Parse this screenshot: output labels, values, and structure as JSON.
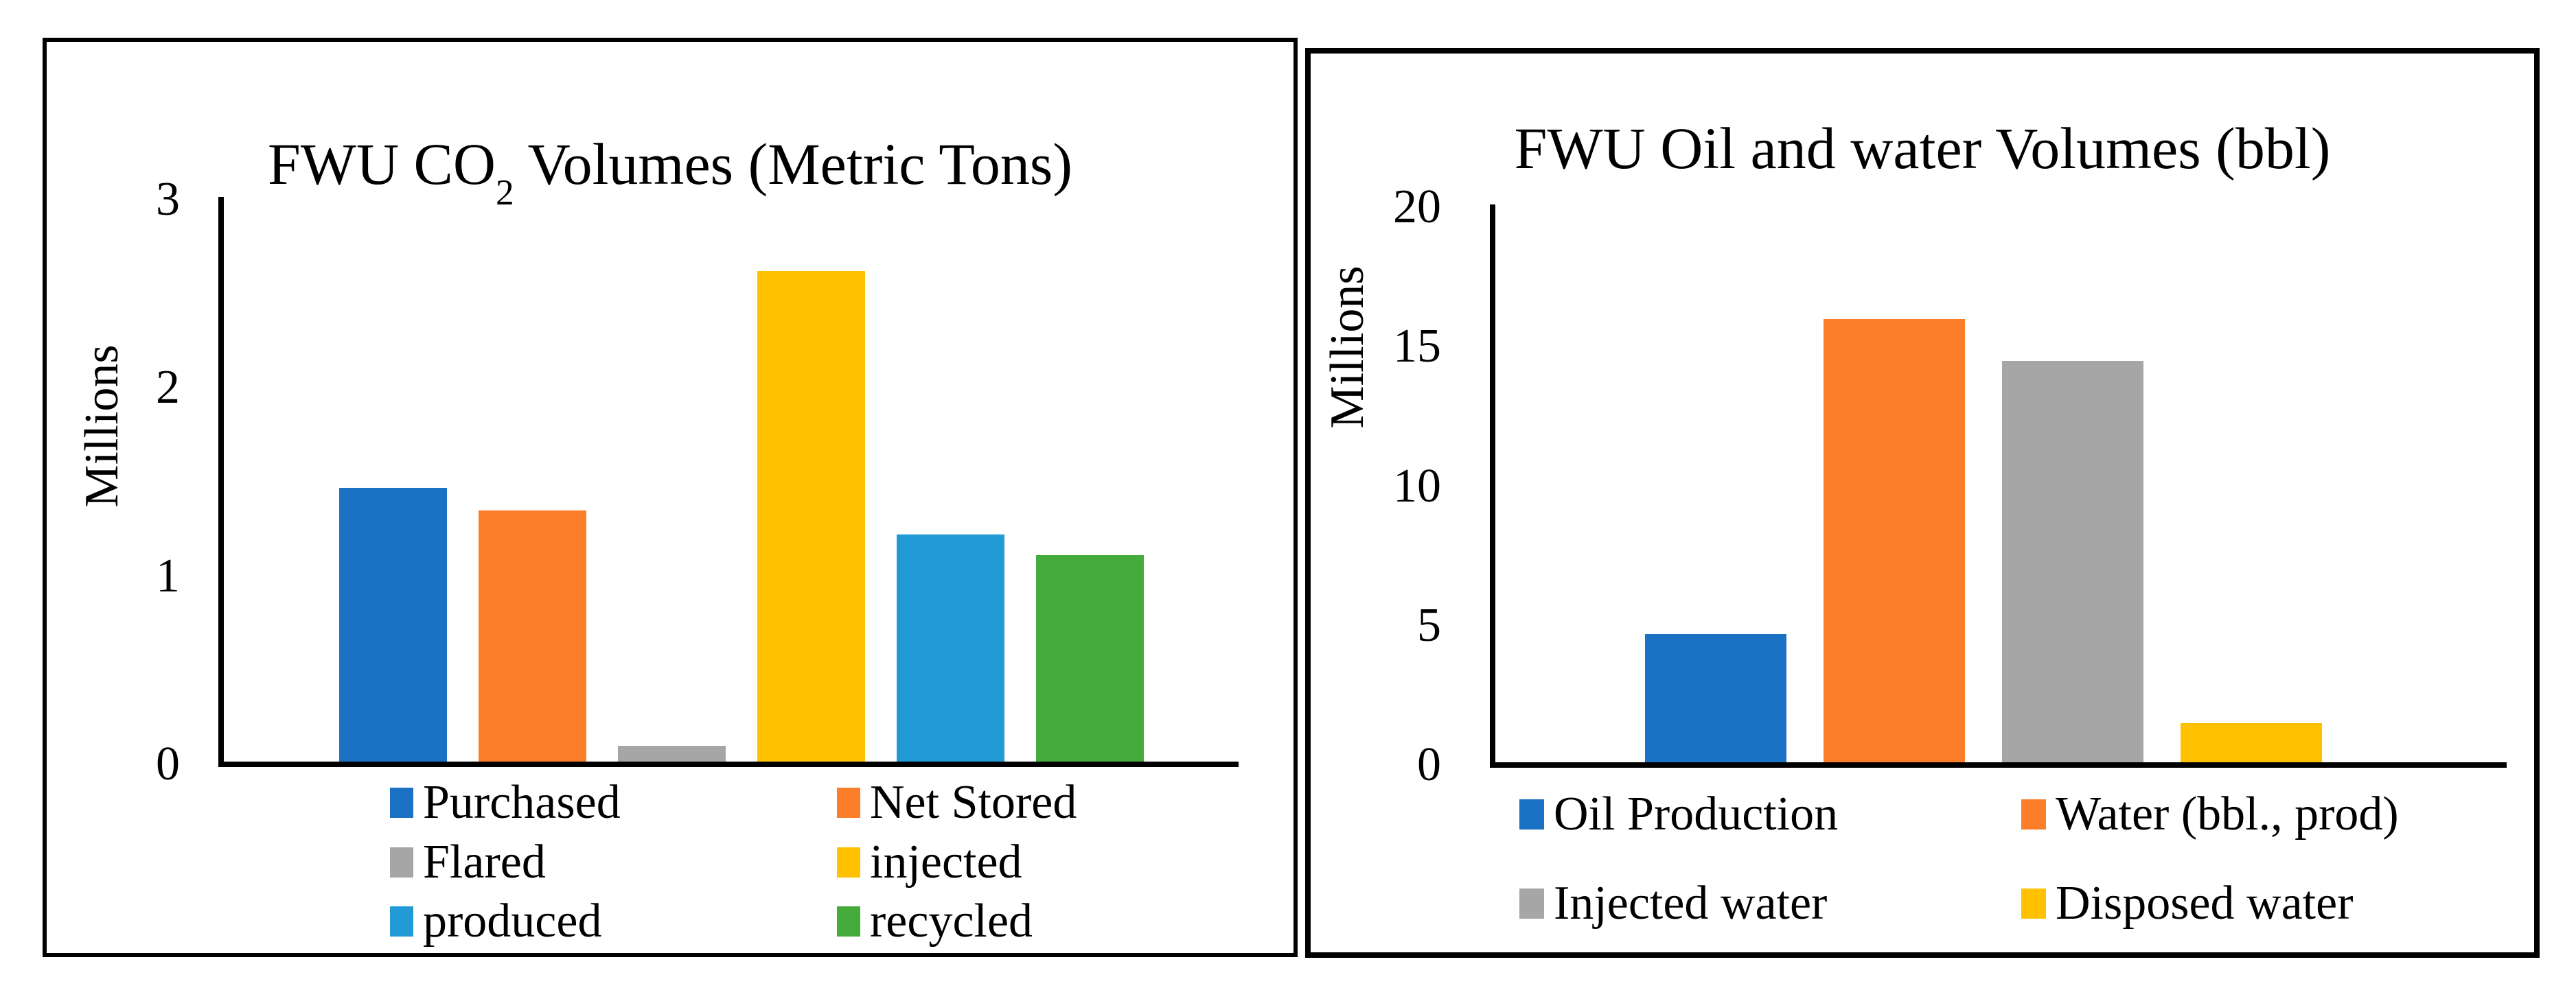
{
  "page": {
    "background": "#FFFFFF",
    "border_color": "#000000",
    "axis_color": "#000000"
  },
  "chart_data": [
    {
      "type": "bar",
      "title": "FWU CO₂ Volumes (Metric Tons)",
      "title_pre": "FWU CO",
      "title_sub": "2",
      "title_post": " Volumes (Metric Tons)",
      "ylabel": "Millions",
      "categories": [
        "Purchased",
        "Net Stored",
        "Flared",
        "injected",
        "produced",
        "recycled"
      ],
      "values": [
        1.47,
        1.35,
        0.1,
        2.62,
        1.22,
        1.11
      ],
      "colors": [
        "#1B72C4",
        "#FC7D2A",
        "#A6A6A6",
        "#FFC102",
        "#219AD6",
        "#45AB3D"
      ],
      "ylim": [
        0,
        3
      ],
      "yticks": [
        3,
        2,
        1,
        0
      ],
      "grid": false,
      "legend_position": "bottom",
      "legend_columns": 2,
      "units_scale_label": "Millions"
    },
    {
      "type": "bar",
      "title": "FWU Oil and water Volumes (bbl)",
      "title_pre": "FWU Oil and water Volumes (bbl)",
      "title_sub": "",
      "title_post": "",
      "ylabel": "Millions",
      "categories": [
        "Oil Production",
        "Water (bbl., prod)",
        "Injected water",
        "Disposed water"
      ],
      "values": [
        4.7,
        16,
        14.5,
        1.5
      ],
      "colors": [
        "#1B72C4",
        "#FC7D2A",
        "#A6A6A6",
        "#FFC102"
      ],
      "ylim": [
        0,
        20
      ],
      "yticks": [
        20,
        15,
        10,
        5,
        0
      ],
      "grid": false,
      "legend_position": "bottom",
      "legend_columns": 2,
      "units_scale_label": "Millions"
    }
  ]
}
